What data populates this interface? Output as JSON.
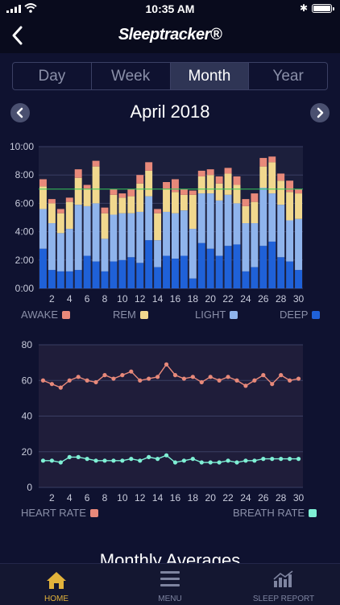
{
  "status": {
    "time": "10:35 AM"
  },
  "header": {
    "logo": "Sleeptracker®"
  },
  "tabs": [
    "Day",
    "Week",
    "Month",
    "Year"
  ],
  "active_tab": "Month",
  "month": {
    "title": "April 2018"
  },
  "legend": {
    "awake": "AWAKE",
    "rem": "REM",
    "light": "LIGHT",
    "deep": "DEEP",
    "heart_rate": "HEART RATE",
    "breath_rate": "BREATH RATE"
  },
  "colors": {
    "awake": "#e8897a",
    "rem": "#f1d88e",
    "light": "#8fb4ec",
    "deep": "#1f61d8",
    "heart": "#e8897a",
    "breath": "#7ff0d5",
    "goal_line": "#34c759",
    "accent": "#e2b33b"
  },
  "section_title": "Monthly Averages",
  "tabbar": {
    "home": "HOME",
    "menu": "MENU",
    "report": "SLEEP REPORT"
  },
  "chart_data": [
    {
      "type": "bar",
      "stacked": true,
      "x_tick_labels": [
        "2",
        "4",
        "6",
        "8",
        "10",
        "12",
        "14",
        "16",
        "18",
        "20",
        "22",
        "24",
        "26",
        "28",
        "30"
      ],
      "y_tick_labels": [
        "0:00",
        "2:00",
        "4:00",
        "6:00",
        "8:00",
        "10:00"
      ],
      "ylim": [
        0,
        10
      ],
      "goal_line": 7.0,
      "categories": [
        1,
        2,
        3,
        4,
        5,
        6,
        7,
        8,
        9,
        10,
        11,
        12,
        13,
        14,
        15,
        16,
        17,
        18,
        19,
        20,
        21,
        22,
        23,
        24,
        25,
        26,
        27,
        28,
        29,
        30
      ],
      "series": [
        {
          "name": "DEEP",
          "values": [
            2.8,
            1.3,
            1.2,
            1.2,
            1.3,
            2.3,
            1.9,
            1.2,
            1.9,
            2.0,
            2.2,
            1.8,
            3.4,
            1.5,
            2.3,
            2.1,
            2.3,
            0.7,
            3.2,
            2.8,
            2.3,
            3.0,
            3.1,
            1.2,
            1.5,
            3.0,
            3.3,
            2.2,
            1.9,
            1.3
          ]
        },
        {
          "name": "LIGHT",
          "values": [
            2.8,
            3.3,
            2.7,
            3.0,
            4.6,
            3.5,
            4.1,
            2.3,
            3.3,
            3.3,
            3.1,
            3.6,
            3.1,
            1.9,
            3.1,
            3.2,
            3.2,
            3.5,
            3.5,
            3.9,
            3.9,
            3.6,
            2.9,
            3.4,
            3.1,
            4.1,
            3.4,
            3.7,
            2.9,
            3.6
          ]
        },
        {
          "name": "REM",
          "values": [
            1.6,
            1.4,
            1.4,
            1.9,
            1.9,
            1.2,
            2.6,
            1.8,
            1.4,
            1.1,
            1.2,
            2.0,
            1.8,
            1.9,
            1.6,
            1.5,
            1.1,
            2.4,
            1.2,
            1.3,
            1.2,
            1.5,
            1.3,
            1.2,
            1.5,
            1.5,
            2.2,
            1.7,
            2.0,
            1.8
          ]
        },
        {
          "name": "AWAKE",
          "values": [
            0.5,
            0.3,
            0.3,
            0.3,
            0.6,
            0.3,
            0.4,
            0.4,
            0.4,
            0.3,
            0.5,
            0.6,
            0.6,
            0.3,
            0.5,
            0.9,
            0.4,
            0.3,
            0.4,
            0.4,
            0.5,
            0.4,
            0.6,
            0.5,
            0.6,
            0.6,
            0.4,
            0.5,
            0.8,
            0.3
          ]
        }
      ]
    },
    {
      "type": "line",
      "x_tick_labels": [
        "2",
        "4",
        "6",
        "8",
        "10",
        "12",
        "14",
        "16",
        "18",
        "20",
        "22",
        "24",
        "26",
        "28",
        "30"
      ],
      "y_tick_labels": [
        "0",
        "20",
        "40",
        "60",
        "80"
      ],
      "ylim": [
        0,
        80
      ],
      "x": [
        1,
        2,
        3,
        4,
        5,
        6,
        7,
        8,
        9,
        10,
        11,
        12,
        13,
        14,
        15,
        16,
        17,
        18,
        19,
        20,
        21,
        22,
        23,
        24,
        25,
        26,
        27,
        28,
        29,
        30
      ],
      "series": [
        {
          "name": "HEART RATE",
          "values": [
            60,
            58,
            56,
            60,
            62,
            60,
            59,
            63,
            61,
            63,
            65,
            60,
            61,
            62,
            69,
            63,
            61,
            62,
            59,
            62,
            60,
            62,
            60,
            57,
            60,
            63,
            58,
            63,
            60,
            61
          ]
        },
        {
          "name": "BREATH RATE",
          "values": [
            15,
            15,
            14,
            17,
            17,
            16,
            15,
            15,
            15,
            15,
            16,
            15,
            17,
            16,
            18,
            14,
            15,
            16,
            14,
            14,
            14,
            15,
            14,
            15,
            15,
            16,
            16,
            16,
            16,
            16
          ]
        }
      ]
    }
  ]
}
